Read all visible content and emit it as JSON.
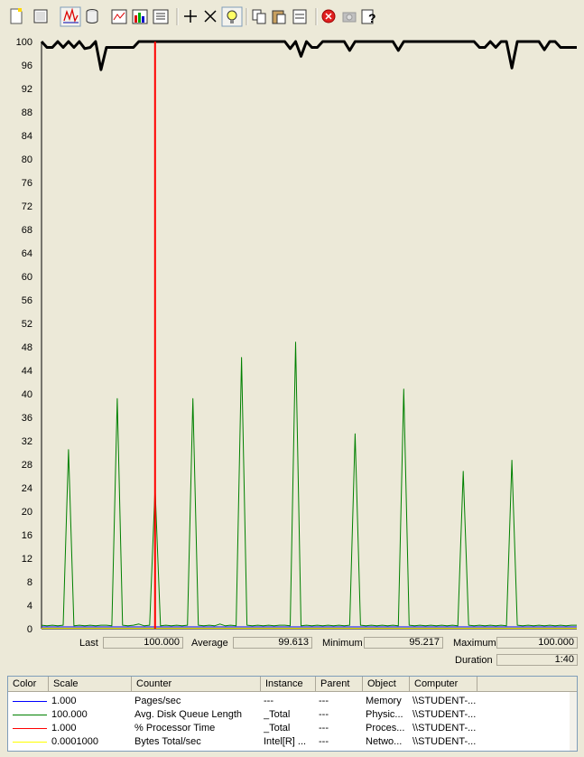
{
  "toolbar": {
    "buttons": [
      {
        "name": "new-counter-set-button",
        "icon": "new-document-icon"
      },
      {
        "name": "clear-display-button",
        "icon": "clear-display-icon"
      },
      {
        "name": "view-current-activity-button",
        "icon": "current-activity-icon",
        "pressed": true
      },
      {
        "name": "view-log-data-button",
        "icon": "database-icon"
      },
      {
        "name": "view-graph-button",
        "icon": "graph-view-icon"
      },
      {
        "name": "view-histogram-button",
        "icon": "histogram-icon"
      },
      {
        "name": "view-report-button",
        "icon": "report-icon"
      },
      {
        "name": "add-counter-button",
        "icon": "plus-icon"
      },
      {
        "name": "delete-counter-button",
        "icon": "delete-x-icon"
      },
      {
        "name": "highlight-button",
        "icon": "lightbulb-icon",
        "pressed": true
      },
      {
        "name": "copy-properties-button",
        "icon": "copy-icon"
      },
      {
        "name": "paste-counter-list-button",
        "icon": "paste-icon"
      },
      {
        "name": "properties-button",
        "icon": "properties-icon"
      },
      {
        "name": "freeze-display-button",
        "icon": "stop-red-icon"
      },
      {
        "name": "update-data-button",
        "icon": "camera-icon",
        "disabled": true
      },
      {
        "name": "help-button",
        "icon": "help-icon"
      }
    ]
  },
  "graph": {
    "y_ticks": [
      "100",
      "96",
      "92",
      "88",
      "84",
      "80",
      "76",
      "72",
      "68",
      "64",
      "60",
      "56",
      "52",
      "48",
      "44",
      "40",
      "36",
      "32",
      "28",
      "24",
      "20",
      "16",
      "12",
      "8",
      "4",
      "0"
    ]
  },
  "chart_data": {
    "type": "line",
    "ylim": [
      0,
      100
    ],
    "x_samples": 100,
    "current_time_marker_sample": 21,
    "series": [
      {
        "name": "Pages/sec",
        "color": "#0000ff",
        "scale": 1.0,
        "values": [
          0.3,
          0.3,
          0.3,
          0.3,
          0.3,
          0.3,
          0.3,
          0.3,
          0.3,
          0.3,
          0.3,
          0.3,
          0.3,
          0.3,
          0.3,
          0.3,
          0.3,
          0.3,
          0.3,
          0.3,
          0.3,
          0.3,
          0.3,
          0.3,
          0.3,
          0.3,
          0.3,
          0.3,
          0.3,
          0.3,
          0.3,
          0.3,
          0.3,
          0.3,
          0.3,
          0.3,
          0.3,
          0.3,
          0.3,
          0.3,
          0.3,
          0.3,
          0.3,
          0.3,
          0.3,
          0.3,
          0.3,
          0.3,
          0.3,
          0.3,
          0.3,
          0.3,
          0.3,
          0.3,
          0.3,
          0.3,
          0.3,
          0.3,
          0.3,
          0.3,
          0.3,
          0.3,
          0.3,
          0.3,
          0.3,
          0.3,
          0.3,
          0.3,
          0.3,
          0.3,
          0.3,
          0.3,
          0.3,
          0.3,
          0.3,
          0.3,
          0.3,
          0.3,
          0.3,
          0.3,
          0.3,
          0.3,
          0.3,
          0.3,
          0.3,
          0.3,
          0.3,
          0.3,
          0.3,
          0.3,
          0.3,
          0.3,
          0.3,
          0.3,
          0.3,
          0.3,
          0.3,
          0.3,
          0.3,
          0.3
        ]
      },
      {
        "name": "Avg. Disk Queue Length",
        "color": "#008000",
        "scale": 100.0,
        "values": [
          0.6,
          0.5,
          0.6,
          0.5,
          0.6,
          30.5,
          0.5,
          0.6,
          0.5,
          0.6,
          0.5,
          0.6,
          0.6,
          0.5,
          39.2,
          0.6,
          0.5,
          0.6,
          0.8,
          0.5,
          0.6,
          24,
          0.5,
          0.6,
          0.5,
          0.6,
          0.5,
          0.6,
          39.2,
          0.6,
          0.5,
          0.6,
          0.5,
          0.8,
          0.5,
          0.6,
          0.5,
          46.2,
          0.6,
          0.5,
          0.6,
          0.5,
          0.6,
          0.5,
          0.6,
          0.6,
          0.5,
          48.8,
          0.5,
          0.6,
          0.5,
          0.6,
          0.5,
          0.6,
          0.5,
          0.6,
          0.5,
          0.6,
          33.2,
          0.6,
          0.5,
          0.6,
          0.5,
          0.6,
          0.5,
          0.6,
          0.5,
          40.8,
          0.6,
          0.5,
          0.6,
          0.5,
          0.6,
          0.5,
          0.6,
          0.5,
          0.6,
          0.5,
          26.8,
          0.6,
          0.5,
          0.6,
          0.5,
          0.6,
          0.5,
          0.6,
          0.5,
          28.7,
          0.6,
          0.5,
          0.6,
          0.5,
          0.6,
          0.5,
          0.6,
          0.5,
          0.6,
          0.5,
          0.6,
          0.6
        ]
      },
      {
        "name": "% Processor Time",
        "color": "#000000",
        "scale": 1.0,
        "values": [
          100,
          99,
          99,
          100,
          99,
          100,
          99,
          100,
          98.8,
          99,
          100,
          95.2,
          99,
          99,
          99,
          99,
          99,
          99,
          100,
          100,
          100,
          100,
          100,
          100,
          100,
          100,
          100,
          100,
          100,
          100,
          100,
          100,
          100,
          100,
          100,
          100,
          100,
          100,
          100,
          100,
          100,
          100,
          100,
          100,
          100,
          100,
          98.8,
          100,
          97.5,
          100,
          99,
          99,
          100,
          100,
          100,
          100,
          100,
          98.5,
          100,
          100,
          100,
          100,
          100,
          100,
          100,
          100,
          98.5,
          100,
          100,
          100,
          100,
          100,
          100,
          100,
          100,
          100,
          100,
          100,
          100,
          100,
          100,
          99,
          99,
          100,
          99,
          100,
          100,
          95.5,
          100,
          100,
          100,
          100,
          100,
          98.6,
          100,
          100,
          99,
          99,
          99,
          99
        ]
      },
      {
        "name": "Bytes Total/sec",
        "color": "#ffff00",
        "scale": 0.0001,
        "values": [
          0.1,
          0.1,
          0.1,
          0.1,
          0.1,
          0.1,
          0.1,
          0.1,
          0.1,
          0.1,
          0.1,
          0.1,
          0.1,
          0.1,
          0.1,
          0.1,
          0.1,
          0.1,
          0.1,
          0.1,
          0.1,
          0.1,
          0.1,
          0.1,
          0.1,
          0.1,
          0.1,
          0.1,
          0.1,
          0.1,
          0.1,
          0.1,
          0.1,
          0.1,
          0.1,
          0.1,
          0.1,
          0.1,
          0.1,
          0.1,
          0.1,
          0.1,
          0.1,
          0.1,
          0.1,
          0.1,
          0.1,
          0.1,
          0.1,
          0.1,
          0.1,
          0.1,
          0.1,
          0.1,
          0.1,
          0.1,
          0.1,
          0.1,
          0.1,
          0.1,
          0.1,
          0.1,
          0.1,
          0.1,
          0.1,
          0.1,
          0.1,
          0.1,
          0.1,
          0.1,
          0.1,
          0.1,
          0.1,
          0.1,
          0.1,
          0.1,
          0.1,
          0.1,
          0.1,
          0.1,
          0.1,
          0.1,
          0.1,
          0.1,
          0.1,
          0.1,
          0.1,
          0.1,
          0.1,
          0.1,
          0.1,
          0.1,
          0.1,
          0.1,
          0.1,
          0.1,
          0.1,
          0.1,
          0.1,
          0.1
        ]
      }
    ]
  },
  "stats": {
    "last_label": "Last",
    "last_value": "100.000",
    "average_label": "Average",
    "average_value": "99.613",
    "minimum_label": "Minimum",
    "minimum_value": "95.217",
    "maximum_label": "Maximum",
    "maximum_value": "100.000",
    "duration_label": "Duration",
    "duration_value": "1:40"
  },
  "legend": {
    "headers": {
      "color": "Color",
      "scale": "Scale",
      "counter": "Counter",
      "instance": "Instance",
      "parent": "Parent",
      "object": "Object",
      "computer": "Computer"
    },
    "rows": [
      {
        "color": "#0000ff",
        "scale": "1.000",
        "counter": "Pages/sec",
        "instance": "---",
        "parent": "---",
        "object": "Memory",
        "computer": "\\\\STUDENT-..."
      },
      {
        "color": "#008000",
        "scale": "100.000",
        "counter": "Avg. Disk Queue Length",
        "instance": "_Total",
        "parent": "---",
        "object": "Physic...",
        "computer": "\\\\STUDENT-..."
      },
      {
        "color": "#ff0000",
        "scale": "1.000",
        "counter": "% Processor Time",
        "instance": "_Total",
        "parent": "---",
        "object": "Proces...",
        "computer": "\\\\STUDENT-..."
      },
      {
        "color": "#ffff00",
        "scale": "0.0001000",
        "counter": "Bytes Total/sec",
        "instance": "Intel[R] ...",
        "parent": "---",
        "object": "Netwo...",
        "computer": "\\\\STUDENT-..."
      }
    ]
  }
}
